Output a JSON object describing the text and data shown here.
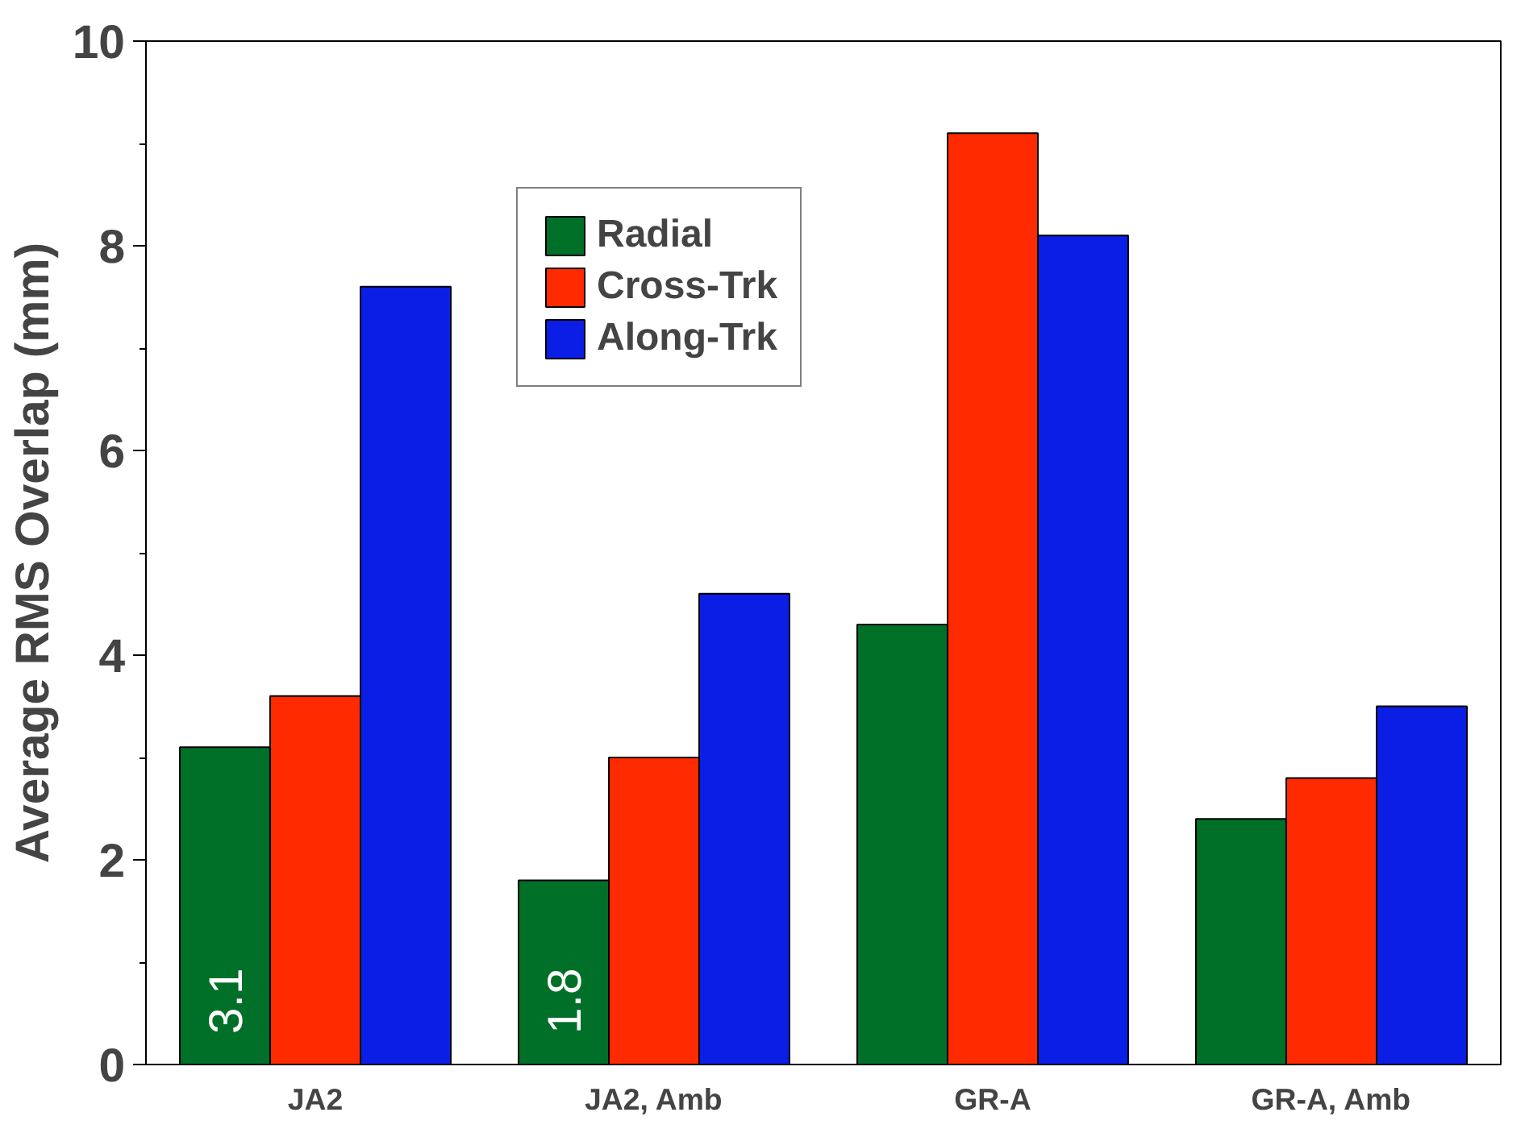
{
  "chart_data": {
    "type": "bar",
    "ylabel": "Average RMS Overlap (mm)",
    "categories": [
      "JA2",
      "JA2, Amb",
      "GR-A",
      "GR-A, Amb"
    ],
    "series": [
      {
        "name": "Radial",
        "color": "#007028",
        "values": [
          3.1,
          1.8,
          4.3,
          2.4
        ],
        "value_labels": [
          "3.1",
          "1.8",
          null,
          null
        ]
      },
      {
        "name": "Cross-Trk",
        "color": "#ff2a00",
        "values": [
          3.6,
          3.0,
          9.1,
          2.8
        ]
      },
      {
        "name": "Along-Trk",
        "color": "#0a1ee6",
        "values": [
          7.6,
          4.6,
          8.1,
          3.5
        ]
      }
    ],
    "ylim": [
      0,
      10
    ],
    "yticks": [
      0,
      2,
      4,
      6,
      8,
      10
    ],
    "grid": false,
    "legend": "top"
  }
}
